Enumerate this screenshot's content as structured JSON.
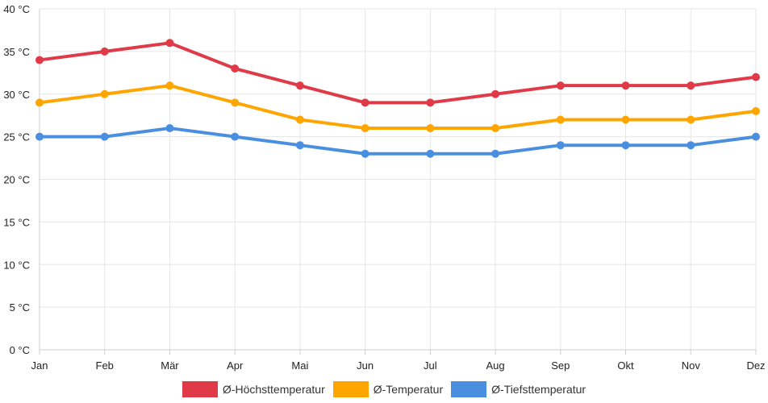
{
  "chart_data": {
    "type": "line",
    "categories": [
      "Jan",
      "Feb",
      "Mär",
      "Apr",
      "Mai",
      "Jun",
      "Jul",
      "Aug",
      "Sep",
      "Okt",
      "Nov",
      "Dez"
    ],
    "ylim": [
      0,
      40
    ],
    "y_ticks": [
      0,
      5,
      10,
      15,
      20,
      25,
      30,
      35,
      40
    ],
    "y_unit": "°C",
    "grid": true,
    "legend_position": "bottom",
    "series": [
      {
        "name": "Ø-Höchsttemperatur",
        "color": "#e03a48",
        "values": [
          34,
          35,
          36,
          33,
          31,
          29,
          29,
          30,
          31,
          31,
          31,
          32
        ]
      },
      {
        "name": "Ø-Temperatur",
        "color": "#ffa500",
        "values": [
          29,
          30,
          31,
          29,
          27,
          26,
          26,
          26,
          27,
          27,
          27,
          28
        ]
      },
      {
        "name": "Ø-Tiefsttemperatur",
        "color": "#4a8fdf",
        "values": [
          25,
          25,
          26,
          25,
          24,
          23,
          23,
          23,
          24,
          24,
          24,
          25
        ]
      }
    ]
  }
}
